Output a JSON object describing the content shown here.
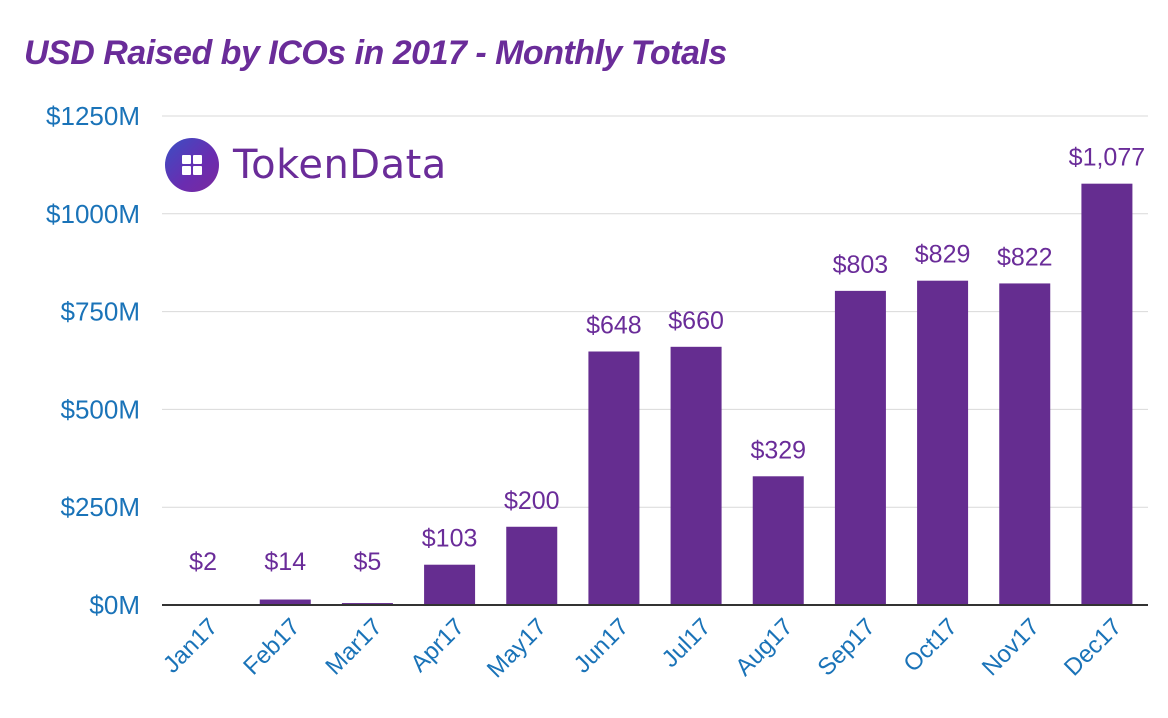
{
  "colors": {
    "title": "#6a2c99",
    "bar": "#652d90",
    "axis_labels": "#1a73b8",
    "data_labels": "#6a2c99",
    "logo_text": "#6a2c99",
    "grid": "#d9d9d9",
    "baseline": "#333333"
  },
  "logo": {
    "icon": "grid-tile-icon",
    "text": "TokenData"
  },
  "chart_data": {
    "type": "bar",
    "title": "USD Raised by ICOs in 2017 - Monthly Totals",
    "xlabel": "",
    "ylabel": "",
    "ylim": [
      0,
      1250
    ],
    "y_ticks": [
      0,
      250,
      500,
      750,
      1000,
      1250
    ],
    "y_tick_labels": [
      "$0M",
      "$250M",
      "$500M",
      "$750M",
      "$1000M",
      "$1250M"
    ],
    "grid": true,
    "legend": "none",
    "categories": [
      "Jan17",
      "Feb17",
      "Mar17",
      "Apr17",
      "May17",
      "Jun17",
      "Jul17",
      "Aug17",
      "Sep17",
      "Oct17",
      "Nov17",
      "Dec17"
    ],
    "values": [
      2,
      14,
      5,
      103,
      200,
      648,
      660,
      329,
      803,
      829,
      822,
      1077
    ],
    "data_labels": [
      "$2",
      "$14",
      "$5",
      "$103",
      "$200",
      "$648",
      "$660",
      "$329",
      "$803",
      "$829",
      "$822",
      "$1,077"
    ]
  }
}
